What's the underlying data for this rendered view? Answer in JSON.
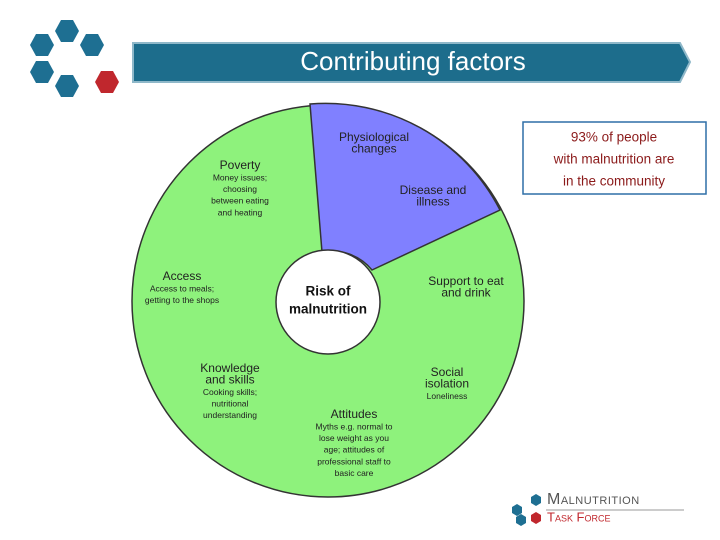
{
  "header": {
    "title": "Contributing factors"
  },
  "callout": {
    "lines": [
      "93% of people",
      "with malnutrition are",
      "in the community"
    ]
  },
  "diagram": {
    "center": [
      "Risk of",
      "malnutrition"
    ],
    "factors": [
      {
        "heading": [
          "Physiological",
          "changes"
        ]
      },
      {
        "heading": [
          "Disease and",
          "illness"
        ]
      },
      {
        "heading": [
          "Support to eat",
          "and drink"
        ]
      },
      {
        "heading": [
          "Social",
          "isolation"
        ],
        "detail": [
          "Loneliness"
        ]
      },
      {
        "heading": [
          "Attitudes"
        ],
        "detail": [
          "Myths e.g. normal to",
          "lose weight as you",
          "age; attitudes of",
          "professional staff to",
          "basic care"
        ]
      },
      {
        "heading": [
          "Knowledge",
          "and skills"
        ],
        "detail": [
          "Cooking skills;",
          "nutritional",
          "understanding"
        ]
      },
      {
        "heading": [
          "Access"
        ],
        "detail": [
          "Access to meals;",
          "getting to the shops"
        ]
      },
      {
        "heading": [
          "Poverty"
        ],
        "detail": [
          "Money issues;",
          "choosing",
          "between eating",
          "and heating"
        ]
      }
    ]
  },
  "logo": {
    "name": "Malnutrition",
    "tagline": "Task Force"
  }
}
